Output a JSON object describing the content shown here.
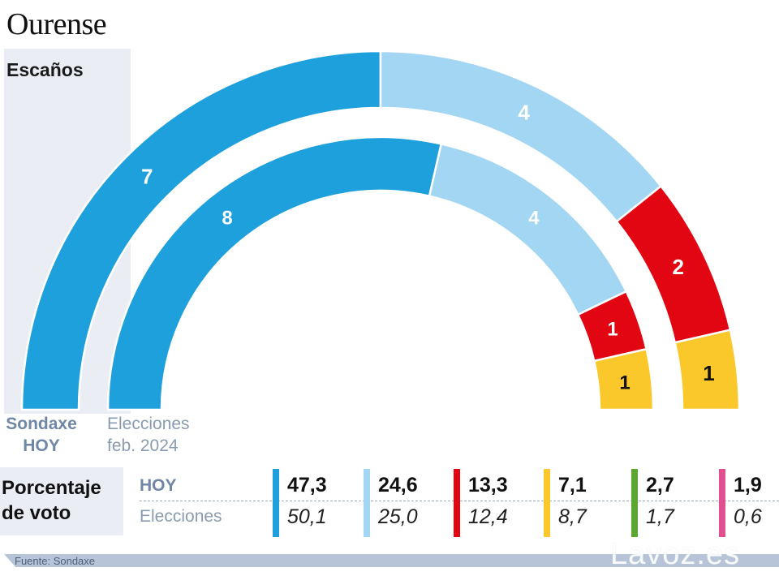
{
  "title": "Ourense",
  "seats_label": "Escaños",
  "ring_labels": {
    "outer": "Sondaxe HOY",
    "inner": "Elecciones feb. 2024"
  },
  "chart_data": [
    {
      "type": "pie",
      "title": "Escaños",
      "rings": [
        {
          "name": "Sondaxe HOY",
          "values": [
            7,
            4,
            2,
            1
          ],
          "colors": [
            "#1ea0dc",
            "#a3d6f3",
            "#e20613",
            "#fbc82b"
          ],
          "label_colors": [
            "#ffffff",
            "#ffffff",
            "#ffffff",
            "#111111"
          ]
        },
        {
          "name": "Elecciones feb. 2024",
          "values": [
            8,
            4,
            1,
            1
          ],
          "colors": [
            "#1ea0dc",
            "#a3d6f3",
            "#e20613",
            "#fbc82b"
          ],
          "label_colors": [
            "#ffffff",
            "#ffffff",
            "#ffffff",
            "#111111"
          ]
        }
      ]
    },
    {
      "type": "table",
      "title": "Porcentaje de voto",
      "rows": [
        "HOY",
        "Elecciones"
      ],
      "columns": [
        {
          "color": "#1ea0dc",
          "hoy": "47,3",
          "prev": "50,1"
        },
        {
          "color": "#a3d6f3",
          "hoy": "24,6",
          "prev": "25,0"
        },
        {
          "color": "#e20613",
          "hoy": "13,3",
          "prev": "12,4"
        },
        {
          "color": "#fbc82b",
          "hoy": "7,1",
          "prev": "8,7"
        },
        {
          "color": "#5aa832",
          "hoy": "2,7",
          "prev": "1,7"
        },
        {
          "color": "#e0508e",
          "hoy": "1,9",
          "prev": "0,6"
        }
      ]
    }
  ],
  "pct_title": "Porcentaje de voto",
  "source": "Fuente:  Sondaxe",
  "logo": "Lavoz.es"
}
